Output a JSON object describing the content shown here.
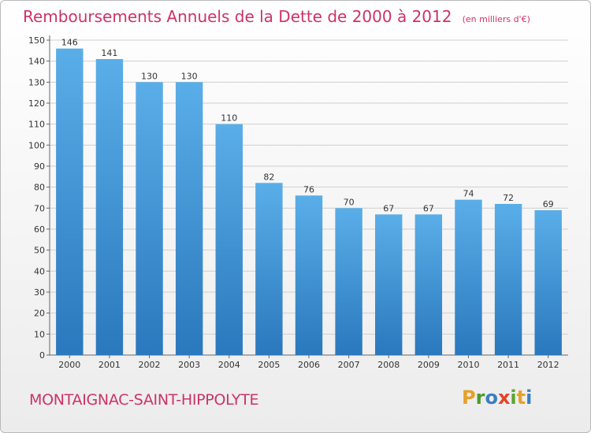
{
  "header": {
    "title": "Remboursements Annuels de la Dette de 2000 à 2012",
    "subtitle": "(en milliers d'€)"
  },
  "footer": {
    "commune": "MONTAIGNAC-SAINT-HIPPOLYTE",
    "brand_letters": [
      "P",
      "r",
      "o",
      "x",
      "i",
      "t",
      "i"
    ],
    "brand_colors": [
      "#e8a02a",
      "#4c9b2b",
      "#3a7fc1",
      "#e2442b",
      "#5aa62f",
      "#e8a02a",
      "#3a7fc1"
    ]
  },
  "chart_data": {
    "type": "bar",
    "title": "Remboursements Annuels de la Dette de 2000 à 2012",
    "subtitle": "(en milliers d'€)",
    "categories": [
      "2000",
      "2001",
      "2002",
      "2003",
      "2004",
      "2005",
      "2006",
      "2007",
      "2008",
      "2009",
      "2010",
      "2011",
      "2012"
    ],
    "values": [
      146,
      141,
      130,
      130,
      110,
      82,
      76,
      70,
      67,
      67,
      74,
      72,
      69
    ],
    "ylim": [
      0,
      150
    ],
    "yticks": [
      0,
      10,
      20,
      30,
      40,
      50,
      60,
      70,
      80,
      90,
      100,
      110,
      120,
      130,
      140,
      150
    ],
    "grid": true,
    "legend": "none",
    "colors": {
      "bar_top": "#5aaee8",
      "bar_bottom": "#2a78bd",
      "grid": "#cfcfcf",
      "title": "#cc3366"
    }
  }
}
